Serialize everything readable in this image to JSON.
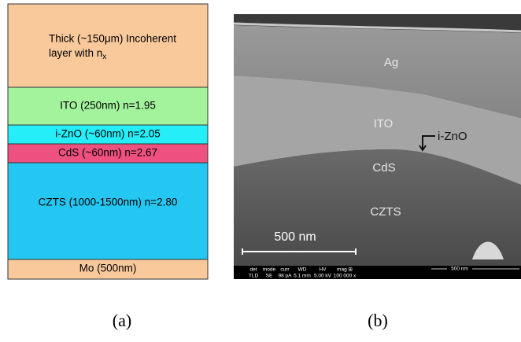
{
  "panel_a": {
    "thick_layer": {
      "lines": [
        "Thick (~150μm)  Incoherent",
        "layer with n"
      ],
      "subscript": "x"
    },
    "layers": [
      "ITO (250nm) n=1.95",
      "i-ZnO (~60nm) n=2.05",
      "CdS (~60nm) n=2.67",
      "CZTS (1000-1500nm) n=2.80",
      "Mo (500nm)"
    ]
  },
  "panel_b": {
    "labels": [
      "Ag",
      "ITO",
      "i-ZnO",
      "CdS",
      "CZTS"
    ],
    "scale_bar": "500 nm",
    "info_bar": {
      "headers": [
        "det",
        "mode",
        "curr",
        "WD",
        "HV",
        "mag ⊞"
      ],
      "values": [
        "TLD",
        "SE",
        "98 pA",
        "5.1 mm",
        "5.00 kV",
        "100 000 x"
      ],
      "scale": "500 nm"
    }
  },
  "captions": [
    "(a)",
    "(b)"
  ]
}
